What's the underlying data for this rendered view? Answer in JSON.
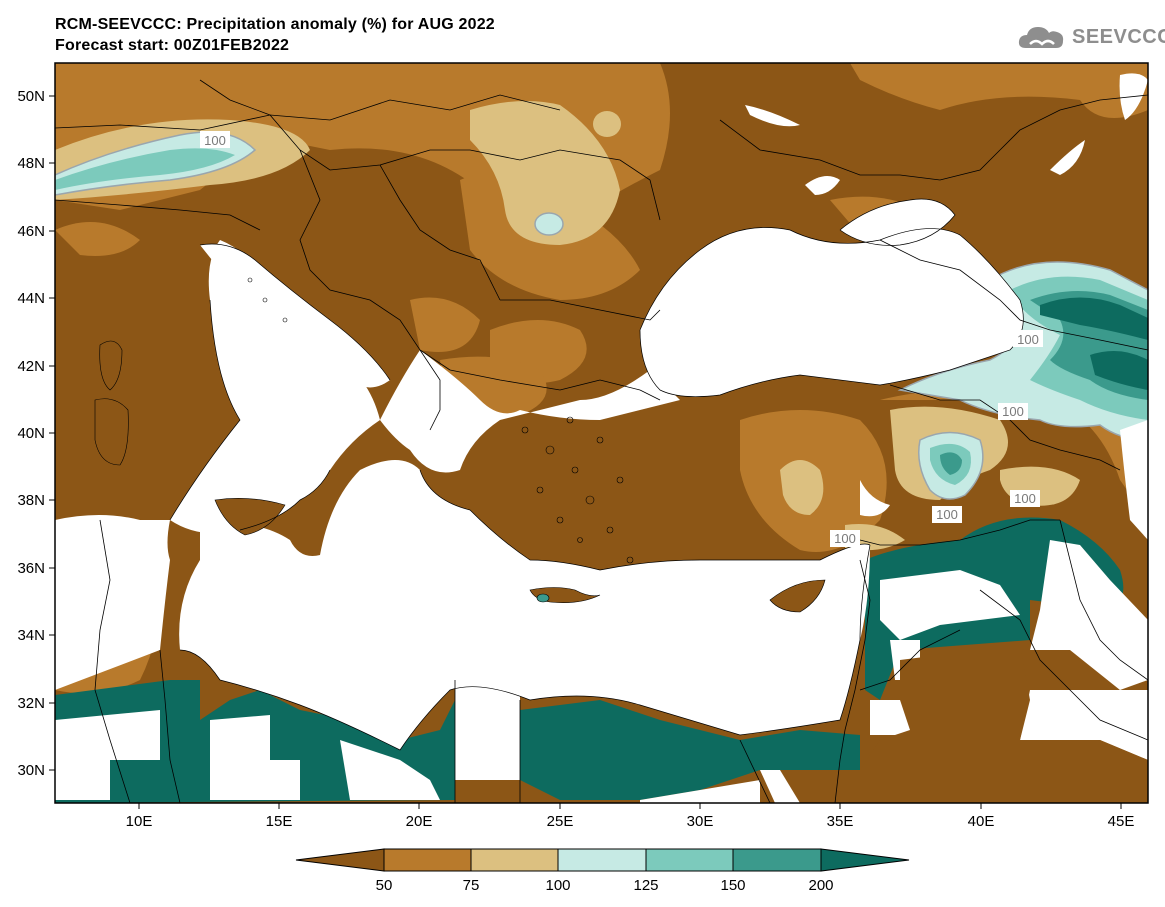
{
  "header": {
    "title_line1": "RCM-SEEVCCC: Precipitation anomaly (%) for AUG 2022",
    "title_line2": "Forecast start: 00Z01FEB2022"
  },
  "logo": {
    "text": "SEEVCCC",
    "icon": "cloud-icon"
  },
  "axes": {
    "lat_ticks": [
      "50N",
      "48N",
      "46N",
      "44N",
      "42N",
      "40N",
      "38N",
      "36N",
      "34N",
      "32N",
      "30N"
    ],
    "lon_ticks": [
      "10E",
      "15E",
      "20E",
      "25E",
      "30E",
      "35E",
      "40E",
      "45E"
    ]
  },
  "contour_labels": [
    "100",
    "100",
    "100",
    "100",
    "100",
    "100",
    "100"
  ],
  "colorbar": {
    "labels": [
      "50",
      "75",
      "100",
      "125",
      "150",
      "200"
    ],
    "colors": [
      "#8c5616",
      "#b87a2c",
      "#dcc080",
      "#c6eae4",
      "#7ccabc",
      "#3b9a8c",
      "#0d6b5f"
    ]
  },
  "colors": {
    "dark_brown": "#8c5616",
    "mid_brown": "#b87a2c",
    "tan": "#dcc080",
    "light_cyan": "#c6eae4",
    "mid_teal": "#7ccabc",
    "teal": "#3b9a8c",
    "dark_teal": "#0d6b5f",
    "sea": "#ffffff"
  }
}
